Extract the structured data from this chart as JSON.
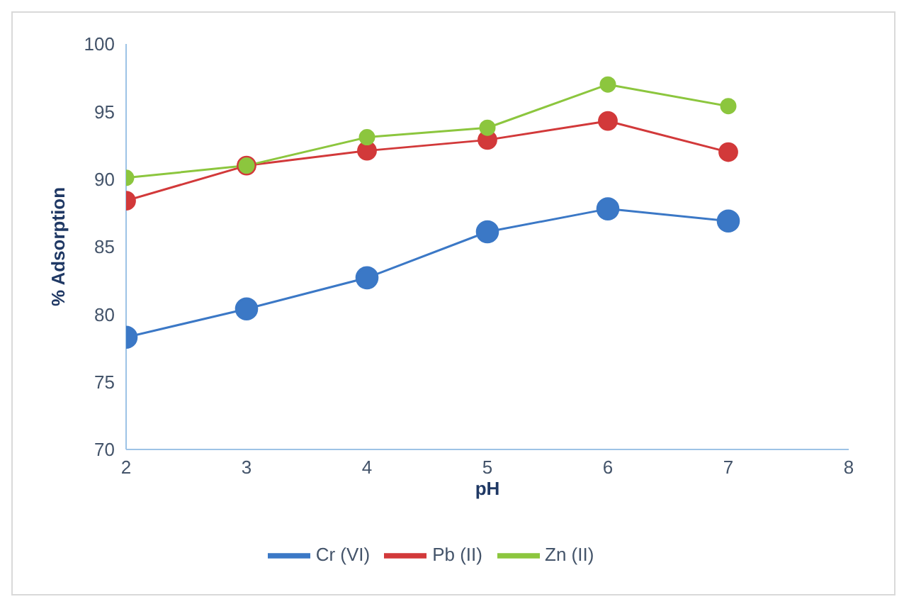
{
  "chart_data": {
    "type": "line",
    "xlabel": "pH",
    "ylabel": "% Adsorption",
    "x": [
      2,
      3,
      4,
      5,
      6,
      7
    ],
    "series": [
      {
        "name": "Cr (VI)",
        "color": "#3b78c6",
        "values": [
          78.3,
          80.4,
          82.7,
          86.1,
          87.8,
          86.9
        ]
      },
      {
        "name": "Pb (II)",
        "color": "#d2393a",
        "values": [
          88.4,
          91.0,
          92.1,
          92.9,
          94.3,
          92.0
        ]
      },
      {
        "name": "Zn (II)",
        "color": "#8cc63e",
        "values": [
          90.1,
          91.0,
          93.1,
          93.8,
          97.0,
          95.4
        ]
      }
    ],
    "xlim": [
      2,
      8
    ],
    "xticks": [
      2,
      3,
      4,
      5,
      6,
      7,
      8
    ],
    "ylim": [
      70,
      100
    ],
    "yticks": [
      70,
      75,
      80,
      85,
      90,
      95,
      100
    ],
    "grid": false,
    "legend": "bottom",
    "marker": "circle",
    "line_style": "solid"
  }
}
